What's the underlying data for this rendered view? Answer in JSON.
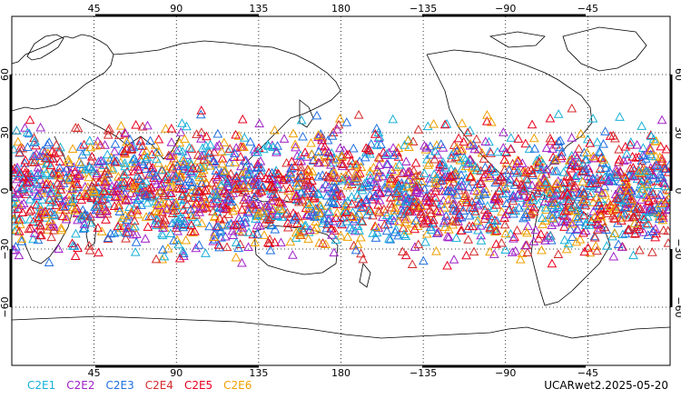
{
  "map": {
    "top_ticks": [
      "45",
      "90",
      "135",
      "180",
      "−135",
      "−90",
      "−45"
    ],
    "bottom_ticks": [
      "45",
      "90",
      "135",
      "180",
      "−135",
      "−90",
      "−45"
    ],
    "left_ticks": [
      "60",
      "30",
      "0",
      "−30",
      "−60"
    ],
    "right_ticks": [
      "60",
      "30",
      "0",
      "−30",
      "−60"
    ],
    "lon_ticks_deg": [
      45,
      90,
      135,
      180,
      -135,
      -90,
      -45
    ],
    "lat_ticks_deg": [
      60,
      30,
      0,
      -30,
      -60
    ],
    "lon_range": [
      0,
      360
    ],
    "lat_range": [
      -90,
      90
    ],
    "obs_lat_band": [
      -45,
      45
    ],
    "grid": "dotted"
  },
  "legend": [
    {
      "label": "C2E1",
      "color": "#17b0d8"
    },
    {
      "label": "C2E2",
      "color": "#a020c8"
    },
    {
      "label": "C2E3",
      "color": "#1f6fe0"
    },
    {
      "label": "C2E4",
      "color": "#d42b2b"
    },
    {
      "label": "C2E5",
      "color": "#e8001e"
    },
    {
      "label": "C2E6",
      "color": "#f0a000"
    }
  ],
  "stamp": "UCARwet2.2025-05-20"
}
